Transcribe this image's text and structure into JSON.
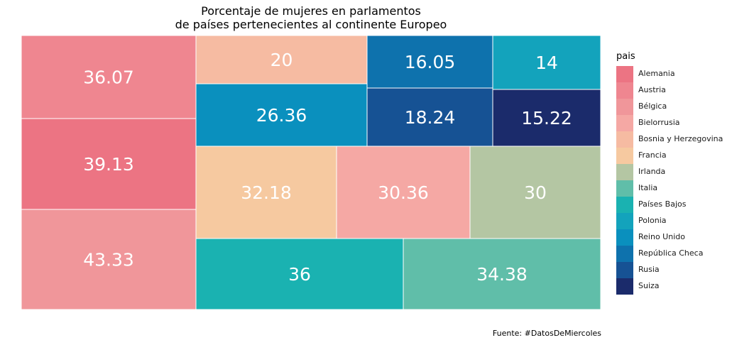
{
  "chart_data": {
    "type": "treemap",
    "title_line1": "Porcentaje de mujeres en parlamentos",
    "title_line2": "de países pertenecientes al continente Europeo",
    "legend_title": "pais",
    "caption": "Fuente: #DatosDeMiercoles",
    "categories": [
      "Alemania",
      "Austria",
      "Bélgica",
      "Bielorrusia",
      "Bosnia y Herzegovina",
      "Francia",
      "Irlanda",
      "Italia",
      "Países Bajos",
      "Polonia",
      "Reino Unido",
      "República Checa",
      "Rusia",
      "Suiza"
    ],
    "colors": [
      "#EC7483",
      "#EF8690",
      "#F0969A",
      "#F5A8A4",
      "#F6BBA2",
      "#F6C9A0",
      "#B4C6A3",
      "#60BEA9",
      "#1AB2B1",
      "#13A3BC",
      "#0A90BE",
      "#0E72AD",
      "#165294",
      "#1B2B6B"
    ],
    "tiles": [
      {
        "label": "36.07",
        "value": 36.07,
        "color": "#EF8690"
      },
      {
        "label": "39.13",
        "value": 39.13,
        "color": "#EC7483"
      },
      {
        "label": "43.33",
        "value": 43.33,
        "color": "#F0969A"
      },
      {
        "label": "20",
        "value": 20,
        "color": "#F6BBA2"
      },
      {
        "label": "26.36",
        "value": 26.36,
        "color": "#0A90BE"
      },
      {
        "label": "16.05",
        "value": 16.05,
        "color": "#0E72AD"
      },
      {
        "label": "14",
        "value": 14,
        "color": "#13A3BC"
      },
      {
        "label": "18.24",
        "value": 18.24,
        "color": "#165294"
      },
      {
        "label": "15.22",
        "value": 15.22,
        "color": "#1B2B6B"
      },
      {
        "label": "32.18",
        "value": 32.18,
        "color": "#F6C9A0"
      },
      {
        "label": "30.36",
        "value": 30.36,
        "color": "#F5A8A4"
      },
      {
        "label": "30",
        "value": 30,
        "color": "#B4C6A3"
      },
      {
        "label": "36",
        "value": 36,
        "color": "#1AB2B1"
      },
      {
        "label": "34.38",
        "value": 34.38,
        "color": "#60BEA9"
      }
    ]
  }
}
